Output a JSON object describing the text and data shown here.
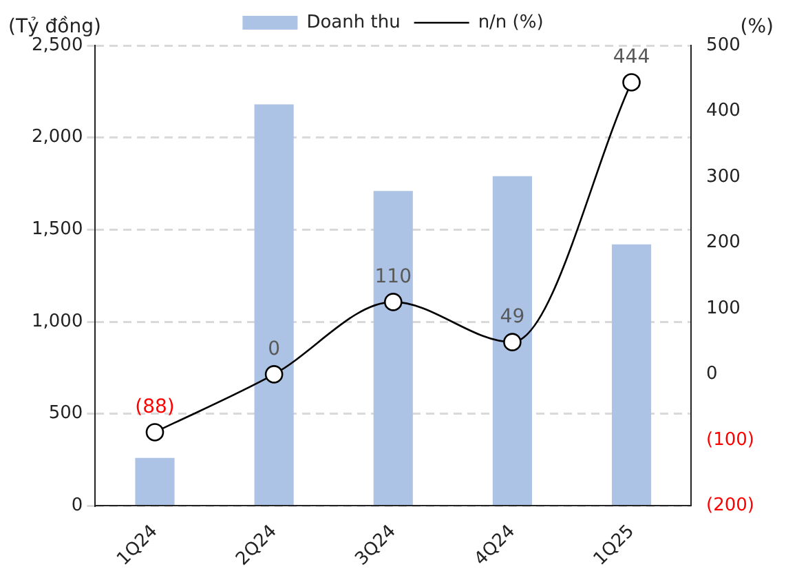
{
  "chart_data": {
    "type": "bar",
    "ylabel": "(Tỷ đồng)",
    "y2label": "(%)",
    "categories": [
      "1Q24",
      "2Q24",
      "3Q24",
      "4Q24",
      "1Q25"
    ],
    "series": [
      {
        "name": "Doanh thu",
        "color": "#adc3e5",
        "values": [
          260,
          2180,
          1710,
          1790,
          1420
        ]
      },
      {
        "name": "n/n (%)",
        "type": "line",
        "axis": "y2",
        "color": "#000000",
        "marker": "circle",
        "values": [
          -88,
          0,
          110,
          49,
          444
        ],
        "value_labels": [
          "(88)",
          "0",
          "110",
          "49",
          "444"
        ]
      }
    ],
    "ylim": [
      0,
      2500
    ],
    "yticks": [
      0,
      {
        "value": 500,
        "label": "500"
      },
      {
        "value": 1000,
        "label": "1,000"
      },
      {
        "value": 1500,
        "label": "1,500"
      },
      {
        "value": 2000,
        "label": "2,000"
      },
      {
        "value": 2500,
        "label": "2,500"
      }
    ],
    "y2lim": [
      -200,
      500
    ],
    "y2ticks": [
      {
        "value": -200,
        "label": "(200)"
      },
      {
        "value": -100,
        "label": "(100)"
      },
      0,
      100,
      200,
      300,
      400,
      500
    ],
    "grid": "y",
    "legend": "top"
  }
}
